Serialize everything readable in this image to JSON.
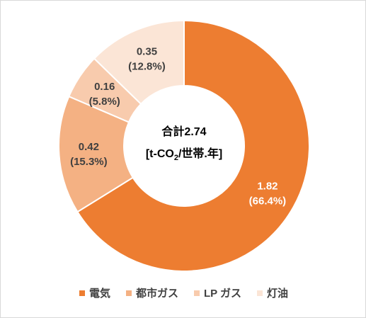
{
  "chart_data": {
    "type": "pie",
    "variant": "doughnut",
    "center_label": {
      "line1": "合計2.74",
      "line2_prefix": "[t-CO",
      "line2_subscript": "2",
      "line2_suffix": "/世帯.年]"
    },
    "slices": [
      {
        "name": "電気",
        "value": 1.82,
        "percent": "66.4%",
        "value_label": "1.82",
        "percent_label": "(66.4%)",
        "color": "#ed7d31",
        "label_color": "#ffffff"
      },
      {
        "name": "都市ガス",
        "value": 0.42,
        "percent": "15.3%",
        "value_label": "0.42",
        "percent_label": "(15.3%)",
        "color": "#f4b183",
        "label_color": "#404040"
      },
      {
        "name": "LP ガス",
        "value": 0.16,
        "percent": "5.8%",
        "value_label": "0.16",
        "percent_label": "(5.8%)",
        "color": "#f8cbad",
        "label_color": "#404040"
      },
      {
        "name": "灯油",
        "value": 0.35,
        "percent": "12.8%",
        "value_label": "0.35",
        "percent_label": "(12.8%)",
        "color": "#fbe5d6",
        "label_color": "#404040"
      }
    ],
    "legend_position": "bottom"
  }
}
